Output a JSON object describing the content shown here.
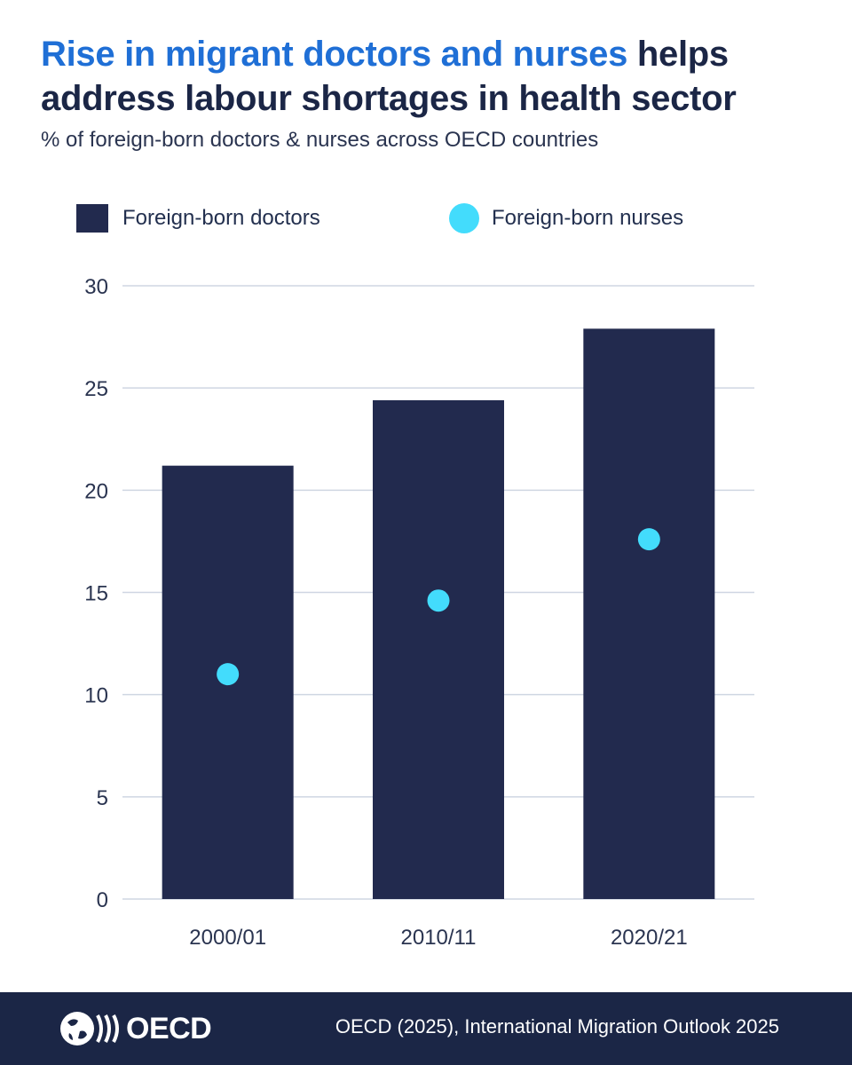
{
  "header": {
    "title_highlight": "Rise in migrant doctors and nurses",
    "title_rest": " helps address labour shortages in health sector",
    "subtitle": "% of foreign-born doctors & nurses across OECD countries"
  },
  "legend": {
    "doctors_label": "Foreign-born doctors",
    "nurses_label": "Foreign-born nurses"
  },
  "colors": {
    "bars": "#222a4e",
    "dots": "#43dcfc",
    "grid": "#cfd6e2",
    "axis_text": "#2a3450",
    "title_highlight": "#1f6fd6",
    "footer_bg": "#1b2646"
  },
  "chart_data": {
    "type": "bar",
    "categories": [
      "2000/01",
      "2010/11",
      "2020/21"
    ],
    "series": [
      {
        "name": "Foreign-born doctors",
        "type": "bar",
        "values": [
          21.2,
          24.4,
          27.9
        ]
      },
      {
        "name": "Foreign-born nurses",
        "type": "scatter",
        "values": [
          11.0,
          14.6,
          17.6
        ]
      }
    ],
    "title": "Rise in migrant doctors and nurses helps address labour shortages in health sector",
    "subtitle": "% of foreign-born doctors & nurses across OECD countries",
    "ylim": [
      0,
      30
    ],
    "yticks": [
      0,
      5,
      10,
      15,
      20,
      25,
      30
    ],
    "grid": true,
    "legend": "top-left"
  },
  "footer": {
    "logo_text": "OECD",
    "source": "OECD (2025), International Migration Outlook 2025"
  }
}
